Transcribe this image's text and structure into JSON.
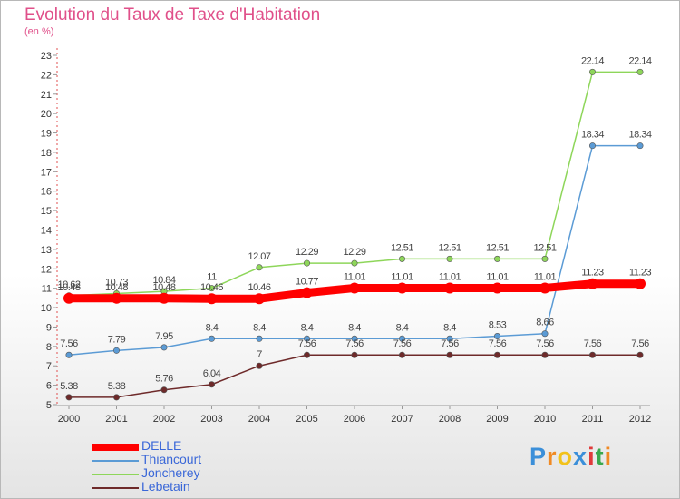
{
  "header": {
    "title": "Evolution du Taux de Taxe d'Habitation",
    "subtitle": "(en %)"
  },
  "chart_data": {
    "type": "line",
    "title": "Evolution du Taux de Taxe d'Habitation",
    "ylabel": "(en %)",
    "xlabel": "",
    "x": [
      "2000",
      "2001",
      "2002",
      "2003",
      "2004",
      "2005",
      "2006",
      "2007",
      "2008",
      "2009",
      "2010",
      "2011",
      "2012"
    ],
    "ylim": [
      5,
      23
    ],
    "yticks": [
      5,
      6,
      7,
      8,
      9,
      10,
      11,
      12,
      13,
      14,
      15,
      16,
      17,
      18,
      19,
      20,
      21,
      22,
      23
    ],
    "grid": false,
    "legend_position": "bottom-left",
    "series": [
      {
        "name": "DELLE",
        "color": "#ff0000",
        "values": [
          10.48,
          10.48,
          10.48,
          10.46,
          10.46,
          10.77,
          11.01,
          11.01,
          11.01,
          11.01,
          11.01,
          11.23,
          11.23
        ],
        "labels": [
          "10.48",
          "10.48",
          "10.48",
          "10.46",
          "10.46",
          "10.77",
          "11.01",
          "11.01",
          "11.01",
          "11.01",
          "11.01",
          "11.23",
          "11.23"
        ]
      },
      {
        "name": "Thiancourt",
        "color": "#5b9bd5",
        "values": [
          7.56,
          7.79,
          7.95,
          8.4,
          8.4,
          8.4,
          8.4,
          8.4,
          8.4,
          8.53,
          8.66,
          18.34,
          18.34
        ],
        "labels": [
          "7.56",
          "7.79",
          "7.95",
          "8.4",
          "8.4",
          "8.4",
          "8.4",
          "8.4",
          "8.4",
          "8.53",
          "8.66",
          "18.34",
          "18.34"
        ]
      },
      {
        "name": "Joncherey",
        "color": "#8ed65a",
        "values": [
          10.62,
          10.73,
          10.84,
          11,
          12.07,
          12.29,
          12.29,
          12.51,
          12.51,
          12.51,
          12.51,
          22.14,
          22.14
        ],
        "labels": [
          "10.62",
          "10.73",
          "10.84",
          "11",
          "12.07",
          "12.29",
          "12.29",
          "12.51",
          "12.51",
          "12.51",
          "12.51",
          "22.14",
          "22.14"
        ]
      },
      {
        "name": "Lebetain",
        "color": "#6e2a2a",
        "values": [
          5.38,
          5.38,
          5.76,
          6.04,
          7,
          7.56,
          7.56,
          7.56,
          7.56,
          7.56,
          7.56,
          7.56,
          7.56
        ],
        "labels": [
          "5.38",
          "5.38",
          "5.76",
          "6.04",
          "7",
          "7.56",
          "7.56",
          "7.56",
          "7.56",
          "7.56",
          "7.56",
          "7.56",
          "7.56"
        ]
      }
    ]
  },
  "logo": {
    "letters": [
      "P",
      "r",
      "o",
      "x",
      "i",
      "t",
      "i"
    ],
    "colors": [
      "#3b8fd9",
      "#f08a24",
      "#f2c21b",
      "#3b8fd9",
      "#e03a3a",
      "#3aa84c",
      "#f08a24"
    ]
  }
}
